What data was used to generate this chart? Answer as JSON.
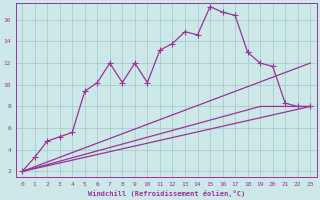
{
  "xlabel": "Windchill (Refroidissement éolien,°C)",
  "background_color": "#cce8e8",
  "grid_color": "#aacccc",
  "line_color": "#993399",
  "xlim": [
    -0.5,
    23.5
  ],
  "ylim": [
    1.5,
    17.5
  ],
  "x_ticks": [
    0,
    1,
    2,
    3,
    4,
    5,
    6,
    7,
    8,
    9,
    10,
    11,
    12,
    13,
    14,
    15,
    16,
    17,
    18,
    19,
    20,
    21,
    22,
    23
  ],
  "y_ticks": [
    2,
    4,
    6,
    8,
    10,
    12,
    14,
    16
  ],
  "series1_x": [
    0,
    1,
    2,
    3,
    4,
    5,
    6,
    7,
    8,
    9,
    10,
    11,
    12,
    13,
    14,
    15,
    16,
    17,
    18,
    19,
    20,
    21,
    22,
    23
  ],
  "series1_y": [
    2.0,
    3.3,
    4.8,
    5.2,
    5.6,
    9.4,
    10.2,
    12.0,
    10.2,
    12.0,
    10.2,
    13.2,
    13.8,
    14.9,
    14.6,
    17.2,
    16.7,
    16.4,
    13.0,
    12.0,
    11.7,
    8.3,
    8.0,
    8.0
  ],
  "series2_x": [
    0,
    23
  ],
  "series2_y": [
    2.0,
    8.0
  ],
  "series3_x": [
    0,
    23
  ],
  "series3_y": [
    2.0,
    12.0
  ],
  "series4_x": [
    0,
    19,
    23
  ],
  "series4_y": [
    2.0,
    8.0,
    8.0
  ]
}
